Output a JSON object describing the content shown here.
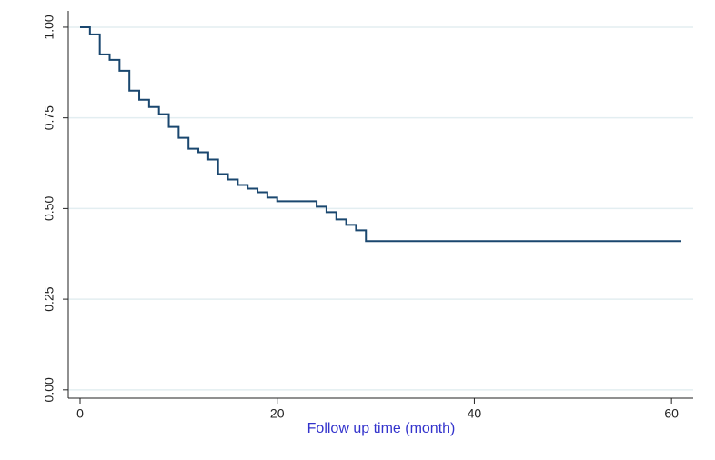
{
  "chart_data": {
    "type": "step",
    "x_label": "Follow up time (month)",
    "x": [
      0,
      1,
      2,
      3,
      4,
      5,
      6,
      7,
      8,
      9,
      10,
      11,
      12,
      13,
      14,
      15,
      16,
      17,
      18,
      19,
      20,
      24,
      25,
      26,
      27,
      28,
      29,
      61
    ],
    "values": [
      1.0,
      0.98,
      0.925,
      0.91,
      0.88,
      0.825,
      0.8,
      0.78,
      0.76,
      0.725,
      0.695,
      0.665,
      0.655,
      0.635,
      0.595,
      0.58,
      0.565,
      0.555,
      0.545,
      0.53,
      0.52,
      0.505,
      0.49,
      0.47,
      0.455,
      0.44,
      0.41,
      0.41
    ],
    "color": "#1a476f",
    "label_color": "#3333cc",
    "grid_color": "#e3eef1",
    "xlim": [
      -1.2,
      62.2
    ],
    "ylim": [
      -0.023,
      1.045
    ],
    "xticks": [
      0,
      20,
      40,
      60
    ],
    "yticks": [
      {
        "value": 0,
        "label": "0.00"
      },
      {
        "value": 0.25,
        "label": "0.25"
      },
      {
        "value": 0.5,
        "label": "0.50"
      },
      {
        "value": 0.75,
        "label": "0.75"
      },
      {
        "value": 1,
        "label": "1.00"
      }
    ],
    "grid": true
  }
}
